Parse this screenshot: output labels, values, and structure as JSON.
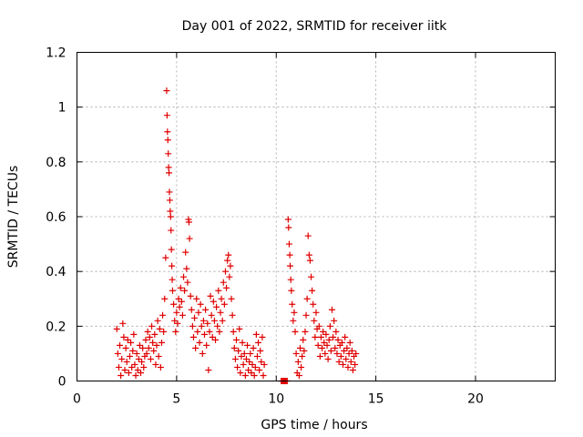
{
  "chart_data": {
    "type": "scatter",
    "title": "Day 001 of 2022, SRMTID for receiver iitk",
    "xlabel": "GPS time / hours",
    "ylabel": "SRMTID / TECUs",
    "xlim": [
      0,
      24
    ],
    "ylim": [
      0,
      1.2
    ],
    "xticks": [
      0,
      5,
      10,
      15,
      20
    ],
    "yticks": [
      0,
      0.2,
      0.4,
      0.6,
      0.8,
      1,
      1.2
    ],
    "xtick_labels": [
      "0",
      "5",
      "10",
      "15",
      "20"
    ],
    "ytick_labels": [
      "0",
      "0.2",
      "0.4",
      "0.6",
      "0.8",
      "1",
      "1.2"
    ],
    "grid": true,
    "marker": "plus",
    "color": "#e00000",
    "series": [
      {
        "points": [
          [
            2.0,
            0.19
          ],
          [
            2.05,
            0.1
          ],
          [
            2.1,
            0.05
          ],
          [
            2.15,
            0.13
          ],
          [
            2.2,
            0.02
          ],
          [
            2.25,
            0.08
          ],
          [
            2.3,
            0.21
          ],
          [
            2.35,
            0.16
          ],
          [
            2.4,
            0.04
          ],
          [
            2.45,
            0.12
          ],
          [
            2.5,
            0.07
          ],
          [
            2.55,
            0.15
          ],
          [
            2.6,
            0.03
          ],
          [
            2.65,
            0.09
          ],
          [
            2.7,
            0.14
          ],
          [
            2.75,
            0.05
          ],
          [
            2.8,
            0.11
          ],
          [
            2.85,
            0.17
          ],
          [
            2.9,
            0.06
          ],
          [
            2.95,
            0.02
          ],
          [
            3.0,
            0.1
          ],
          [
            3.05,
            0.04
          ],
          [
            3.1,
            0.08
          ],
          [
            3.15,
            0.13
          ],
          [
            3.2,
            0.03
          ],
          [
            3.25,
            0.07
          ],
          [
            3.3,
            0.12
          ],
          [
            3.35,
            0.05
          ],
          [
            3.4,
            0.09
          ],
          [
            3.45,
            0.15
          ],
          [
            3.5,
            0.1
          ],
          [
            3.55,
            0.18
          ],
          [
            3.6,
            0.12
          ],
          [
            3.65,
            0.16
          ],
          [
            3.7,
            0.08
          ],
          [
            3.75,
            0.2
          ],
          [
            3.8,
            0.14
          ],
          [
            3.85,
            0.11
          ],
          [
            3.9,
            0.17
          ],
          [
            3.95,
            0.06
          ],
          [
            4.0,
            0.13
          ],
          [
            4.05,
            0.22
          ],
          [
            4.1,
            0.09
          ],
          [
            4.15,
            0.19
          ],
          [
            4.2,
            0.05
          ],
          [
            4.25,
            0.14
          ],
          [
            4.3,
            0.24
          ],
          [
            4.35,
            0.18
          ],
          [
            4.4,
            0.3
          ],
          [
            4.45,
            0.45
          ],
          [
            4.5,
            1.06
          ],
          [
            4.52,
            0.97
          ],
          [
            4.54,
            0.91
          ],
          [
            4.56,
            0.88
          ],
          [
            4.58,
            0.83
          ],
          [
            4.6,
            0.78
          ],
          [
            4.62,
            0.76
          ],
          [
            4.64,
            0.69
          ],
          [
            4.66,
            0.66
          ],
          [
            4.68,
            0.62
          ],
          [
            4.7,
            0.6
          ],
          [
            4.72,
            0.55
          ],
          [
            4.74,
            0.48
          ],
          [
            4.76,
            0.42
          ],
          [
            4.78,
            0.37
          ],
          [
            4.8,
            0.33
          ],
          [
            4.85,
            0.28
          ],
          [
            4.9,
            0.22
          ],
          [
            4.95,
            0.18
          ],
          [
            5.0,
            0.25
          ],
          [
            5.05,
            0.21
          ],
          [
            5.1,
            0.3
          ],
          [
            5.15,
            0.27
          ],
          [
            5.2,
            0.34
          ],
          [
            5.25,
            0.29
          ],
          [
            5.3,
            0.24
          ],
          [
            5.35,
            0.38
          ],
          [
            5.4,
            0.33
          ],
          [
            5.45,
            0.47
          ],
          [
            5.5,
            0.41
          ],
          [
            5.55,
            0.36
          ],
          [
            5.6,
            0.59
          ],
          [
            5.62,
            0.58
          ],
          [
            5.65,
            0.52
          ],
          [
            5.7,
            0.31
          ],
          [
            5.75,
            0.26
          ],
          [
            5.8,
            0.2
          ],
          [
            5.85,
            0.16
          ],
          [
            5.9,
            0.23
          ],
          [
            5.95,
            0.12
          ],
          [
            6.0,
            0.3
          ],
          [
            6.05,
            0.18
          ],
          [
            6.1,
            0.25
          ],
          [
            6.15,
            0.14
          ],
          [
            6.2,
            0.28
          ],
          [
            6.25,
            0.2
          ],
          [
            6.3,
            0.1
          ],
          [
            6.35,
            0.22
          ],
          [
            6.4,
            0.17
          ],
          [
            6.45,
            0.26
          ],
          [
            6.5,
            0.13
          ],
          [
            6.55,
            0.21
          ],
          [
            6.6,
            0.04
          ],
          [
            6.65,
            0.18
          ],
          [
            6.7,
            0.31
          ],
          [
            6.75,
            0.24
          ],
          [
            6.8,
            0.16
          ],
          [
            6.85,
            0.29
          ],
          [
            6.9,
            0.22
          ],
          [
            6.95,
            0.15
          ],
          [
            7.0,
            0.27
          ],
          [
            7.05,
            0.2
          ],
          [
            7.1,
            0.33
          ],
          [
            7.15,
            0.18
          ],
          [
            7.2,
            0.25
          ],
          [
            7.25,
            0.3
          ],
          [
            7.3,
            0.22
          ],
          [
            7.35,
            0.36
          ],
          [
            7.4,
            0.28
          ],
          [
            7.45,
            0.4
          ],
          [
            7.5,
            0.34
          ],
          [
            7.55,
            0.44
          ],
          [
            7.6,
            0.46
          ],
          [
            7.65,
            0.38
          ],
          [
            7.7,
            0.42
          ],
          [
            7.75,
            0.3
          ],
          [
            7.8,
            0.24
          ],
          [
            7.85,
            0.18
          ],
          [
            7.9,
            0.12
          ],
          [
            7.95,
            0.08
          ],
          [
            8.0,
            0.15
          ],
          [
            8.05,
            0.05
          ],
          [
            8.1,
            0.11
          ],
          [
            8.15,
            0.19
          ],
          [
            8.2,
            0.03
          ],
          [
            8.25,
            0.09
          ],
          [
            8.3,
            0.14
          ],
          [
            8.35,
            0.06
          ],
          [
            8.4,
            0.1
          ],
          [
            8.45,
            0.02
          ],
          [
            8.5,
            0.08
          ],
          [
            8.55,
            0.13
          ],
          [
            8.6,
            0.04
          ],
          [
            8.65,
            0.07
          ],
          [
            8.7,
            0.1
          ],
          [
            8.75,
            0.03
          ],
          [
            8.8,
            0.06
          ],
          [
            8.85,
            0.12
          ],
          [
            8.9,
            0.02
          ],
          [
            8.95,
            0.05
          ],
          [
            9.0,
            0.17
          ],
          [
            9.05,
            0.09
          ],
          [
            9.1,
            0.14
          ],
          [
            9.15,
            0.04
          ],
          [
            9.2,
            0.11
          ],
          [
            9.25,
            0.07
          ],
          [
            9.3,
            0.16
          ],
          [
            9.35,
            0.02
          ],
          [
            9.4,
            0.06
          ],
          [
            10.25,
            0.0
          ],
          [
            10.3,
            0.0
          ],
          [
            10.35,
            0.0
          ],
          [
            10.4,
            0.0
          ],
          [
            10.45,
            0.0
          ],
          [
            10.5,
            0.0
          ],
          [
            10.55,
            0.0
          ],
          [
            10.6,
            0.59
          ],
          [
            10.62,
            0.56
          ],
          [
            10.65,
            0.5
          ],
          [
            10.68,
            0.46
          ],
          [
            10.7,
            0.42
          ],
          [
            10.73,
            0.37
          ],
          [
            10.76,
            0.33
          ],
          [
            10.8,
            0.28
          ],
          [
            10.85,
            0.22
          ],
          [
            10.9,
            0.25
          ],
          [
            10.95,
            0.18
          ],
          [
            11.0,
            0.1
          ],
          [
            11.05,
            0.03
          ],
          [
            11.1,
            0.07
          ],
          [
            11.15,
            0.02
          ],
          [
            11.2,
            0.12
          ],
          [
            11.25,
            0.05
          ],
          [
            11.3,
            0.09
          ],
          [
            11.35,
            0.15
          ],
          [
            11.4,
            0.11
          ],
          [
            11.45,
            0.18
          ],
          [
            11.5,
            0.24
          ],
          [
            11.55,
            0.3
          ],
          [
            11.6,
            0.53
          ],
          [
            11.65,
            0.46
          ],
          [
            11.7,
            0.44
          ],
          [
            11.75,
            0.38
          ],
          [
            11.8,
            0.33
          ],
          [
            11.85,
            0.28
          ],
          [
            11.9,
            0.22
          ],
          [
            11.95,
            0.16
          ],
          [
            12.0,
            0.25
          ],
          [
            12.05,
            0.19
          ],
          [
            12.1,
            0.13
          ],
          [
            12.15,
            0.2
          ],
          [
            12.2,
            0.09
          ],
          [
            12.25,
            0.16
          ],
          [
            12.3,
            0.12
          ],
          [
            12.35,
            0.18
          ],
          [
            12.4,
            0.14
          ],
          [
            12.45,
            0.1
          ],
          [
            12.5,
            0.17
          ],
          [
            12.55,
            0.13
          ],
          [
            12.6,
            0.08
          ],
          [
            12.65,
            0.15
          ],
          [
            12.7,
            0.2
          ],
          [
            12.75,
            0.11
          ],
          [
            12.8,
            0.26
          ],
          [
            12.85,
            0.16
          ],
          [
            12.9,
            0.22
          ],
          [
            12.95,
            0.12
          ],
          [
            13.0,
            0.18
          ],
          [
            13.05,
            0.1
          ],
          [
            13.1,
            0.15
          ],
          [
            13.15,
            0.07
          ],
          [
            13.2,
            0.13
          ],
          [
            13.25,
            0.09
          ],
          [
            13.3,
            0.14
          ],
          [
            13.35,
            0.06
          ],
          [
            13.4,
            0.11
          ],
          [
            13.45,
            0.16
          ],
          [
            13.5,
            0.08
          ],
          [
            13.55,
            0.12
          ],
          [
            13.6,
            0.05
          ],
          [
            13.65,
            0.1
          ],
          [
            13.7,
            0.14
          ],
          [
            13.75,
            0.07
          ],
          [
            13.8,
            0.11
          ],
          [
            13.85,
            0.04
          ],
          [
            13.9,
            0.09
          ],
          [
            13.95,
            0.06
          ],
          [
            14.0,
            0.1
          ]
        ]
      }
    ]
  }
}
